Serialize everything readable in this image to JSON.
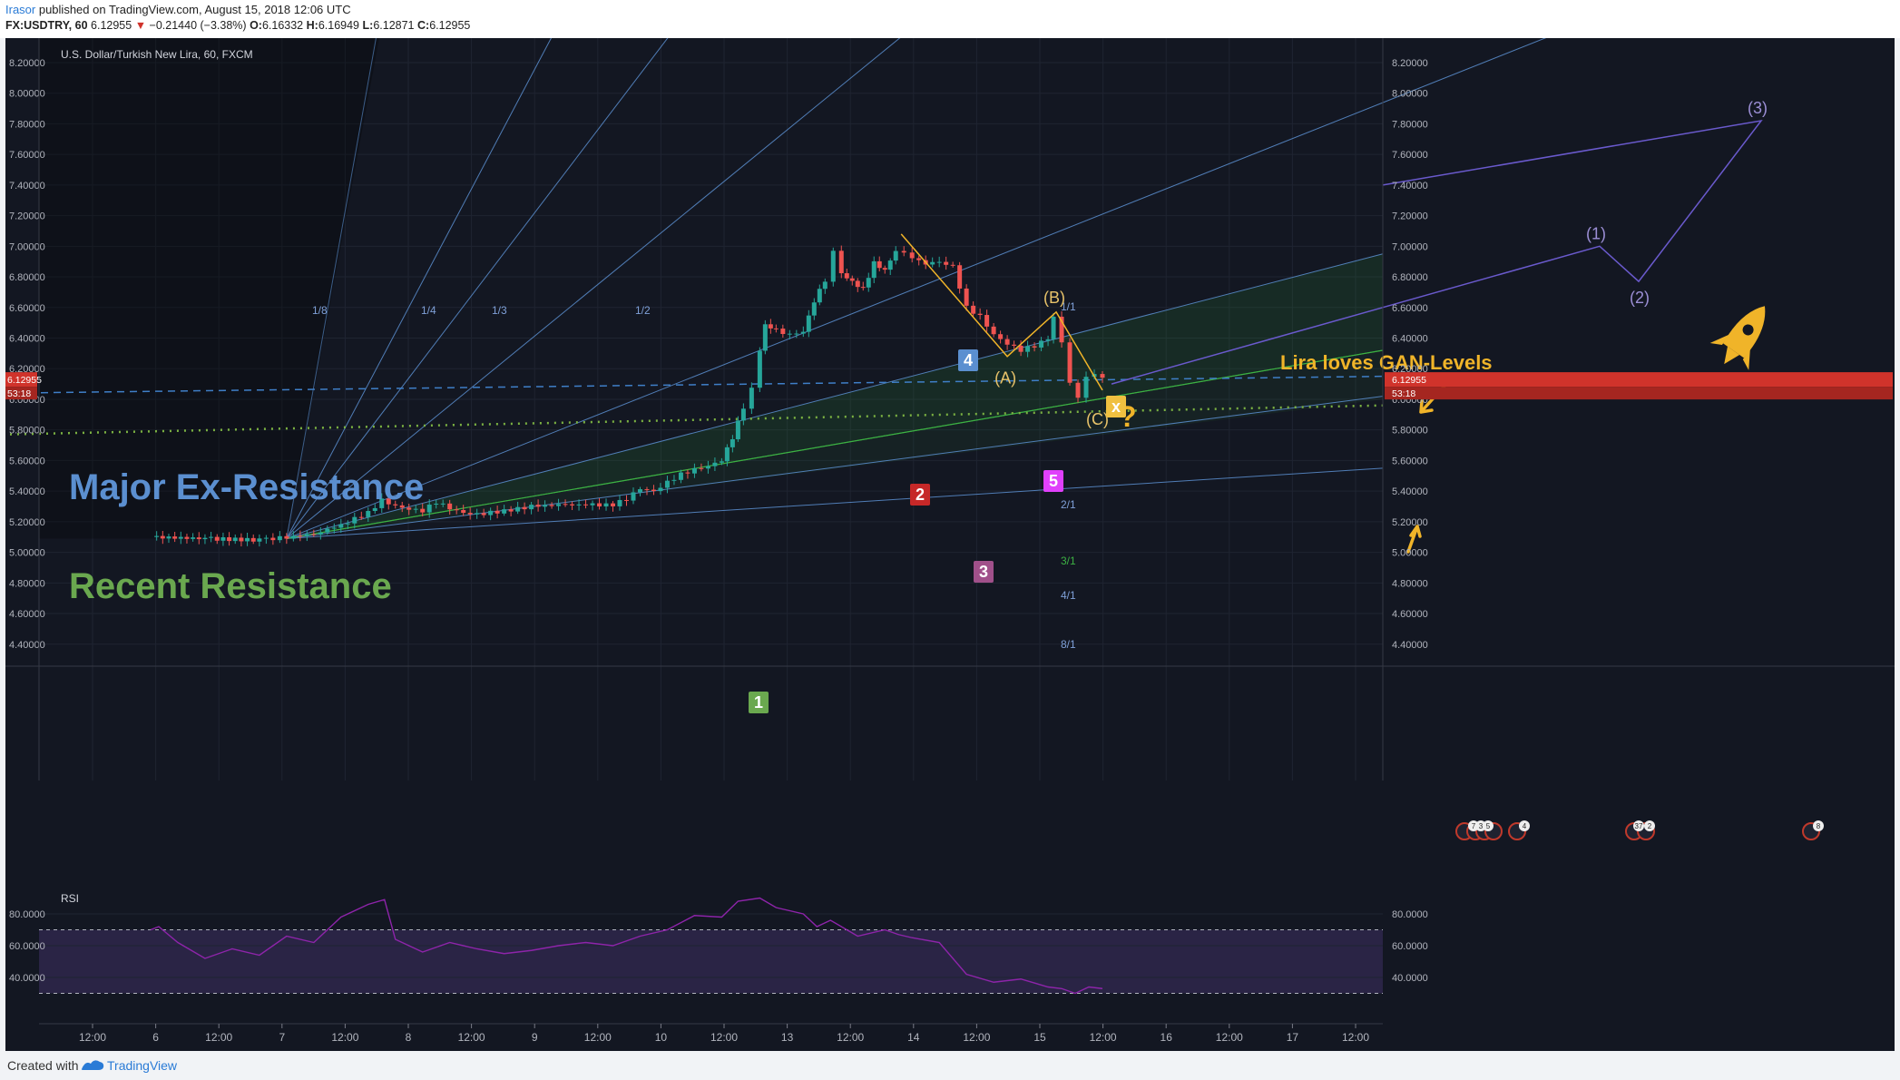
{
  "header": {
    "user": "Irasor",
    "published": " published on TradingView.com, August 15, 2018 12:06 UTC",
    "symbol": "FX:USDTRY, 60",
    "last": "6.12955",
    "change_arrow": "▼",
    "change": "−0.21440 (−3.38%)",
    "o_label": "O:",
    "o": "6.16332",
    "h_label": "H:",
    "h": "6.16949",
    "l_label": "L:",
    "l": "6.12871",
    "c_label": "C:",
    "c": "6.12955"
  },
  "footer": {
    "created": "Created with",
    "brand": "TradingView"
  },
  "colors": {
    "background": "#131722",
    "grid": "#1f2431",
    "up": "#26a69a",
    "down": "#ef5350",
    "gann": "#5b8fd0",
    "green_band": "#2f8c3a",
    "accent_yellow": "#f0b429",
    "rsi": "#8e24aa",
    "price_tag": "#d0332b"
  },
  "chart_data": [
    {
      "type": "line",
      "title": "U.S. Dollar/Turkish New Lira, 60, FXCM",
      "series_type": "candlestick",
      "ylim": [
        4.28,
        8.36
      ],
      "y_ticks": [
        "8.20000",
        "8.00000",
        "7.80000",
        "7.60000",
        "7.40000",
        "7.20000",
        "7.00000",
        "6.80000",
        "6.60000",
        "6.40000",
        "6.20000",
        "6.00000",
        "5.80000",
        "5.60000",
        "5.40000",
        "5.20000",
        "5.00000",
        "4.80000",
        "4.60000",
        "4.40000"
      ],
      "x_ticks": [
        "12:00",
        "6",
        "12:00",
        "7",
        "12:00",
        "8",
        "12:00",
        "9",
        "12:00",
        "10",
        "12:00",
        "13",
        "12:00",
        "14",
        "12:00",
        "15",
        "12:00",
        "16",
        "12:00",
        "17",
        "12:00"
      ],
      "current_price": "6.12955",
      "countdown": "53:18",
      "price_path": [
        [
          0,
          5.1
        ],
        [
          2,
          5.09
        ],
        [
          4,
          5.08
        ],
        [
          5,
          5.1
        ],
        [
          6,
          5.12
        ],
        [
          7,
          5.18
        ],
        [
          8,
          5.26
        ],
        [
          8.5,
          5.34
        ],
        [
          9,
          5.3
        ],
        [
          9.5,
          5.28
        ],
        [
          10,
          5.27
        ],
        [
          10.5,
          5.33
        ],
        [
          11,
          5.29
        ],
        [
          11.5,
          5.26
        ],
        [
          12,
          5.25
        ],
        [
          13,
          5.27
        ],
        [
          14,
          5.3
        ],
        [
          15,
          5.31
        ],
        [
          16,
          5.31
        ],
        [
          17,
          5.31
        ],
        [
          17.5,
          5.35
        ],
        [
          18,
          5.42
        ],
        [
          18.5,
          5.4
        ],
        [
          19,
          5.46
        ],
        [
          19.5,
          5.51
        ],
        [
          20,
          5.54
        ],
        [
          20.5,
          5.56
        ],
        [
          21,
          5.6
        ],
        [
          21.4,
          5.75
        ],
        [
          21.8,
          5.95
        ],
        [
          22.1,
          6.07
        ],
        [
          22.4,
          6.32
        ],
        [
          22.6,
          6.5
        ],
        [
          23,
          6.45
        ],
        [
          23.5,
          6.42
        ],
        [
          24,
          6.44
        ],
        [
          24.4,
          6.64
        ],
        [
          24.8,
          6.78
        ],
        [
          25.1,
          6.96
        ],
        [
          25.4,
          6.82
        ],
        [
          25.8,
          6.77
        ],
        [
          26.2,
          6.72
        ],
        [
          26.6,
          6.89
        ],
        [
          27,
          6.84
        ],
        [
          27.4,
          6.97
        ],
        [
          27.7,
          6.95
        ],
        [
          28,
          6.91
        ],
        [
          28.5,
          6.89
        ],
        [
          29,
          6.9
        ],
        [
          29.5,
          6.87
        ],
        [
          30,
          6.6
        ],
        [
          30.5,
          6.54
        ],
        [
          31,
          6.42
        ],
        [
          31.5,
          6.36
        ],
        [
          32,
          6.32
        ],
        [
          32.5,
          6.35
        ],
        [
          33,
          6.4
        ],
        [
          33.2,
          6.54
        ],
        [
          33.5,
          6.38
        ],
        [
          33.8,
          6.12
        ],
        [
          34.1,
          6.02
        ],
        [
          34.4,
          6.15
        ],
        [
          34.7,
          6.16
        ],
        [
          35,
          6.13
        ]
      ],
      "rsi_path": [
        [
          0,
          70
        ],
        [
          0.3,
          72
        ],
        [
          1,
          62
        ],
        [
          2,
          52
        ],
        [
          3,
          58
        ],
        [
          4,
          54
        ],
        [
          5,
          66
        ],
        [
          6,
          62
        ],
        [
          7,
          78
        ],
        [
          8,
          86
        ],
        [
          8.6,
          89
        ],
        [
          9,
          64
        ],
        [
          10,
          56
        ],
        [
          11,
          62
        ],
        [
          12,
          58
        ],
        [
          13,
          55
        ],
        [
          14,
          57
        ],
        [
          15,
          60
        ],
        [
          16,
          62
        ],
        [
          17,
          60
        ],
        [
          18,
          66
        ],
        [
          19,
          70
        ],
        [
          20,
          79
        ],
        [
          21,
          78
        ],
        [
          21.6,
          88
        ],
        [
          22.4,
          90
        ],
        [
          23,
          84
        ],
        [
          24,
          80
        ],
        [
          24.5,
          72
        ],
        [
          25,
          76
        ],
        [
          26,
          66
        ],
        [
          27,
          70
        ],
        [
          27.5,
          67
        ],
        [
          28,
          65
        ],
        [
          29,
          62
        ],
        [
          30,
          42
        ],
        [
          31,
          37
        ],
        [
          32,
          39
        ],
        [
          33,
          34
        ],
        [
          33.5,
          33
        ],
        [
          34,
          30
        ],
        [
          34.5,
          34
        ],
        [
          35,
          33
        ]
      ],
      "x_range": [
        0,
        35
      ],
      "annotations": {
        "major_ex_resistance": "Major Ex-Resistance",
        "recent_resistance": "Recent Resistance",
        "callout": "Lira loves GAN-Levels",
        "wave_a": "(A)",
        "wave_b": "(B)",
        "wave_c": "(C)",
        "question": "?",
        "proj_1": "(1)",
        "proj_2": "(2)",
        "proj_3": "(3)",
        "marker_1": "1",
        "marker_2": "2",
        "marker_3": "3",
        "marker_4": "4",
        "marker_5": "5",
        "marker_x": "x",
        "gann_labels": [
          "1/8",
          "1/4",
          "1/3",
          "1/2",
          "1/1",
          "2/1",
          "3/1",
          "4/1",
          "8/1"
        ],
        "event_counts": [
          "7",
          "3",
          "5",
          "4",
          "37",
          "2",
          "8"
        ]
      }
    },
    {
      "type": "line",
      "title": "RSI",
      "ylim": [
        20,
        100
      ],
      "y_ticks": [
        "80.0000",
        "60.0000",
        "40.0000"
      ],
      "bands": [
        30,
        70
      ]
    }
  ]
}
